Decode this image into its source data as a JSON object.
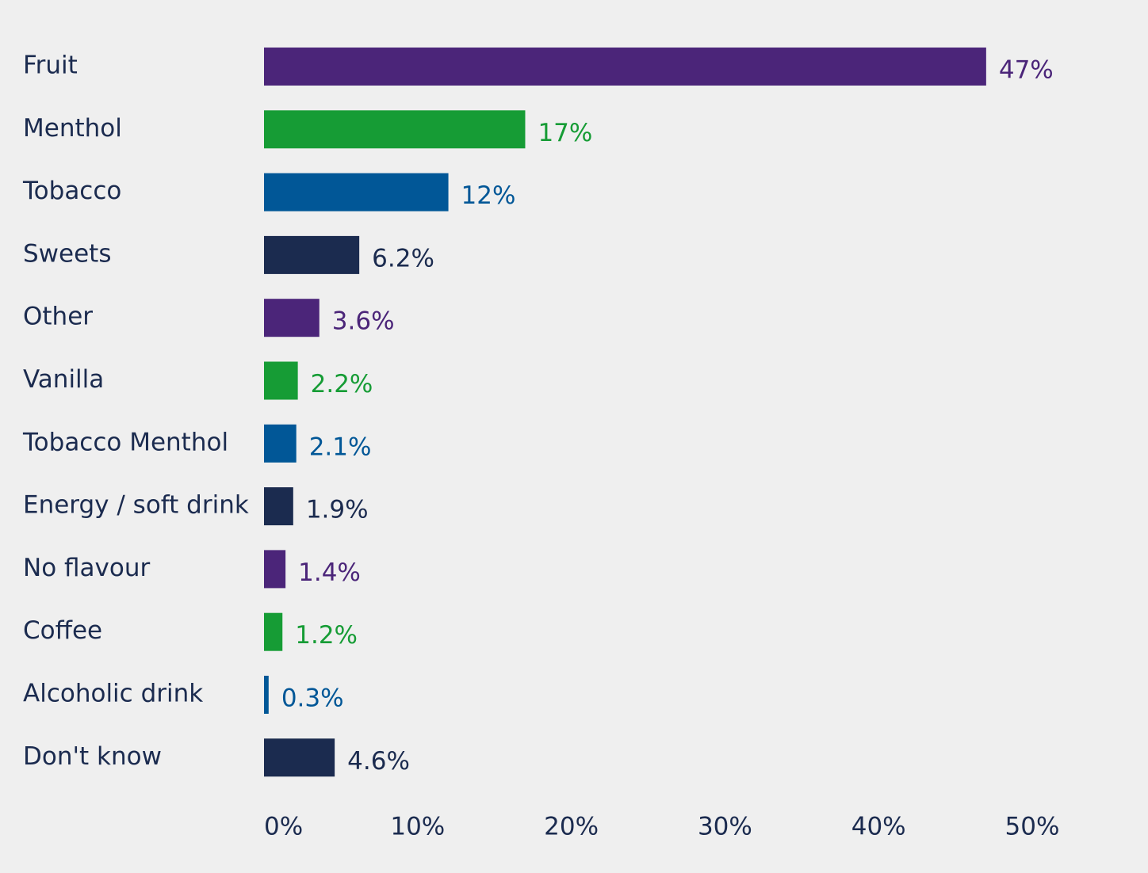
{
  "chart_data": {
    "type": "bar",
    "orientation": "horizontal",
    "title": "",
    "xlabel": "",
    "ylabel": "",
    "xlim": [
      0,
      50
    ],
    "x_ticks": [
      0,
      10,
      20,
      30,
      40,
      50
    ],
    "x_tick_labels": [
      "0%",
      "10%",
      "20%",
      "30%",
      "40%",
      "50%"
    ],
    "grid": false,
    "legend": "none",
    "categories": [
      "Fruit",
      "Menthol",
      "Tobacco",
      "Sweets",
      "Other",
      "Vanilla",
      "Tobacco Menthol",
      "Energy / soft drink",
      "No flavour",
      "Coffee",
      "Alcoholic drink",
      "Don't know"
    ],
    "values": [
      47,
      17,
      12,
      6.2,
      3.6,
      2.2,
      2.1,
      1.9,
      1.4,
      1.2,
      0.3,
      4.6
    ],
    "value_labels": [
      "47%",
      "17%",
      "12%",
      "6.2%",
      "3.6%",
      "2.2%",
      "2.1%",
      "1.9%",
      "1.4%",
      "1.2%",
      "0.3%",
      "4.6%"
    ],
    "colors": [
      "#4b2579",
      "#169c35",
      "#015797",
      "#1b2b4f",
      "#4b2579",
      "#169c35",
      "#015797",
      "#1b2b4f",
      "#4b2579",
      "#169c35",
      "#015797",
      "#1b2b4f"
    ],
    "label_colors": [
      "#4b2579",
      "#169c35",
      "#015797",
      "#1b2b4f",
      "#4b2579",
      "#169c35",
      "#015797",
      "#1b2b4f",
      "#4b2579",
      "#169c35",
      "#015797",
      "#1b2b4f"
    ],
    "category_label_color": "#1b2b4f",
    "tick_label_color": "#1b2b4f",
    "background": "#efefef"
  }
}
